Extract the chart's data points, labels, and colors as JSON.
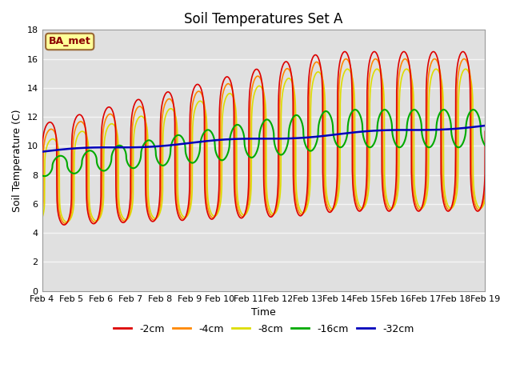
{
  "title": "Soil Temperatures Set A",
  "xlabel": "Time",
  "ylabel": "Soil Temperature (C)",
  "ylim": [
    0,
    18
  ],
  "x_tick_labels": [
    "Feb 4",
    "Feb 5",
    "Feb 6",
    "Feb 7",
    "Feb 8",
    "Feb 9",
    "Feb 10",
    "Feb 11",
    "Feb 12",
    "Feb 13",
    "Feb 14",
    "Feb 15",
    "Feb 16",
    "Feb 17",
    "Feb 18",
    "Feb 19"
  ],
  "colors": {
    "2cm": "#dd0000",
    "4cm": "#ff8800",
    "8cm": "#dddd00",
    "16cm": "#00aa00",
    "32cm": "#0000bb"
  },
  "legend_labels": [
    "-2cm",
    "-4cm",
    "-8cm",
    "-16cm",
    "-32cm"
  ],
  "label_box_text": "BA_met",
  "fig_bg_color": "#ffffff",
  "plot_bg_color": "#e0e0e0",
  "grid_color": "#f5f5f5",
  "title_fontsize": 12,
  "axis_label_fontsize": 9,
  "tick_fontsize": 8
}
